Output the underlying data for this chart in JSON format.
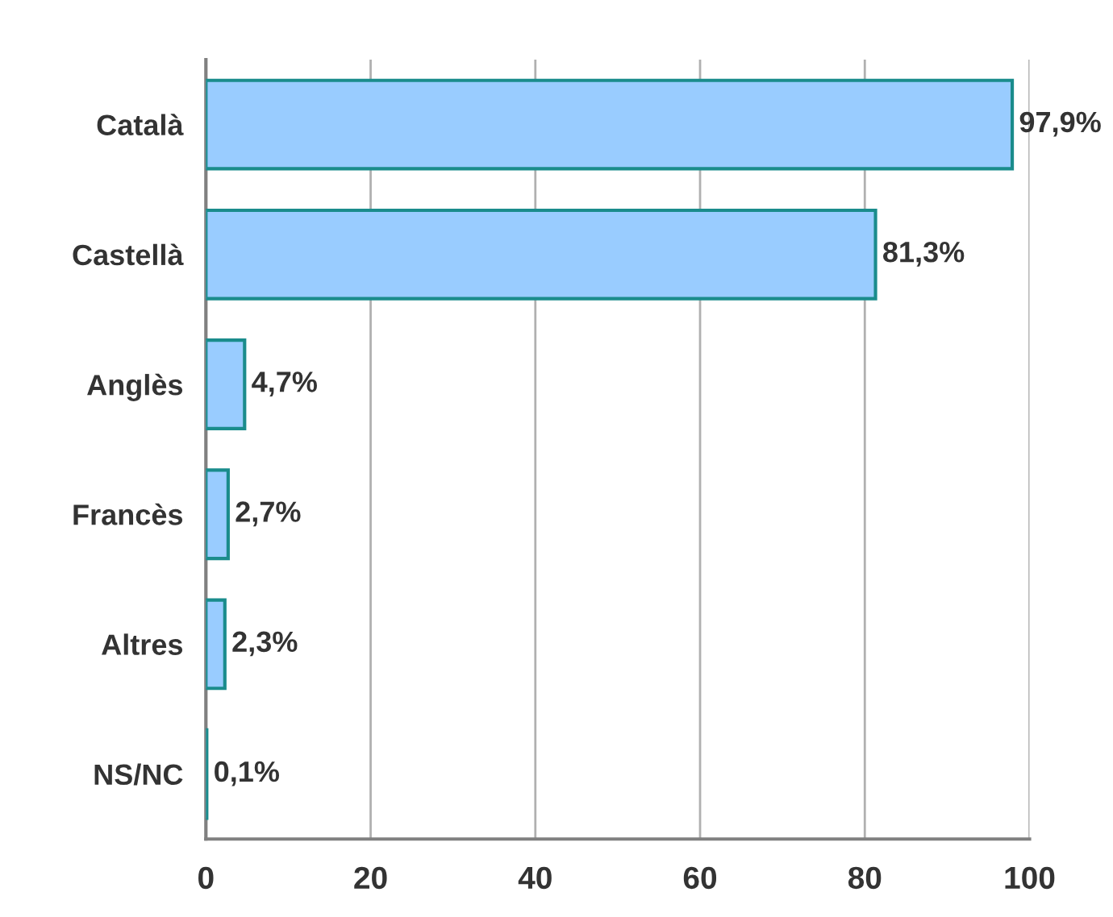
{
  "chart_data": {
    "type": "bar",
    "orientation": "horizontal",
    "categories": [
      "Català",
      "Castellà",
      "Anglès",
      "Francès",
      "Altres",
      "NS/NC"
    ],
    "values": [
      97.9,
      81.3,
      4.7,
      2.7,
      2.3,
      0.1
    ],
    "value_labels": [
      "97,9%",
      "81,3%",
      "4,7%",
      "2,7%",
      "2,3%",
      "0,1%"
    ],
    "color": "#99ccff",
    "xlim": [
      0,
      100
    ],
    "xticks": [
      0,
      20,
      40,
      60,
      80,
      100
    ],
    "grid": "x",
    "legend": false
  }
}
